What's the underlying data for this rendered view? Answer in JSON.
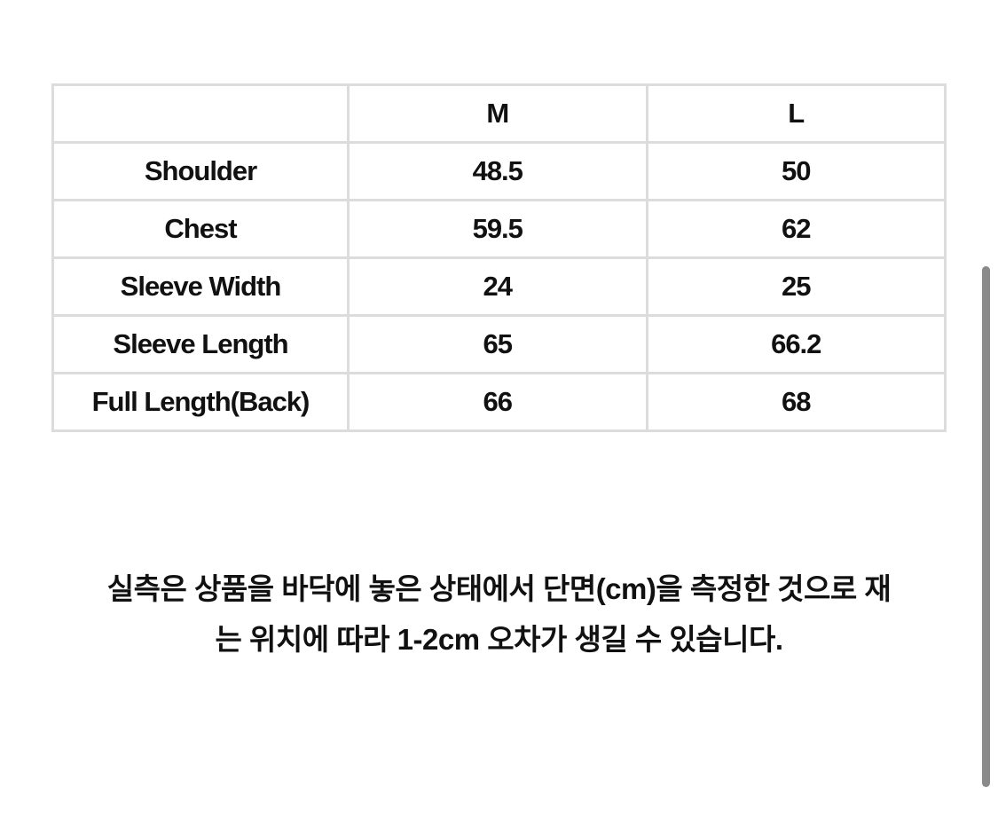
{
  "table": {
    "header": [
      "",
      "M",
      "L"
    ],
    "rows": [
      [
        "Shoulder",
        "48.5",
        "50"
      ],
      [
        "Chest",
        "59.5",
        "62"
      ],
      [
        "Sleeve Width",
        "24",
        "25"
      ],
      [
        "Sleeve Length",
        "65",
        "66.2"
      ],
      [
        "Full Length(Back)",
        "66",
        "68"
      ]
    ]
  },
  "note": {
    "line1": "실측은 상품을 바닥에 놓은 상태에서 단면(cm)을 측정한 것으로 재",
    "line2": "는 위치에 따라 1-2cm 오차가 생길 수 있습니다."
  }
}
